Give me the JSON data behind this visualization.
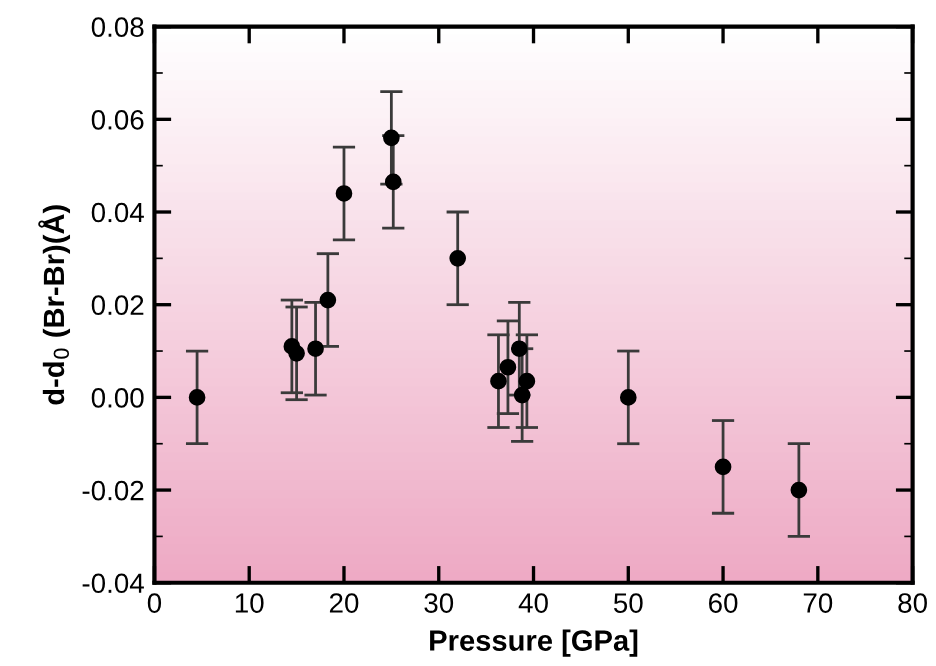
{
  "chart_data": {
    "type": "scatter",
    "xlabel": "Pressure [GPa]",
    "ylabel": "d-d$_{0}$ (Br-Br)(Å)",
    "x": [
      4.5,
      14.5,
      15,
      17,
      18.3,
      20,
      25,
      25.2,
      32,
      36.3,
      37.3,
      38.5,
      38.8,
      39.3,
      50,
      60,
      68
    ],
    "series": [
      {
        "color": "#000000",
        "values": [
          0.0,
          0.011,
          0.0095,
          0.0105,
          0.021,
          0.044,
          0.056,
          0.0465,
          0.03,
          0.0035,
          0.0065,
          0.0105,
          0.0005,
          0.0035,
          0.0,
          -0.015,
          -0.02
        ],
        "errors": [
          0.01,
          0.01,
          0.01,
          0.01,
          0.01,
          0.01,
          0.01,
          0.01,
          0.01,
          0.01,
          0.01,
          0.01,
          0.01,
          0.01,
          0.01,
          0.01,
          0.01
        ]
      }
    ],
    "xlim": [
      0,
      80
    ],
    "xticks": [
      0,
      10,
      20,
      30,
      40,
      50,
      60,
      70,
      80
    ],
    "ylim": [
      -0.04,
      0.08
    ],
    "yticks": [
      {
        "value": -0.04,
        "label": "-0.04"
      },
      {
        "value": -0.02,
        "label": "-0.02"
      },
      {
        "value": 0,
        "label": "0.00"
      },
      {
        "value": 0.02,
        "label": "0.02"
      },
      {
        "value": 0.04,
        "label": "0.04"
      },
      {
        "value": 0.06,
        "label": "0.06"
      },
      {
        "value": 0.08,
        "label": "0.08"
      }
    ],
    "marker": "circle",
    "grid": false
  }
}
